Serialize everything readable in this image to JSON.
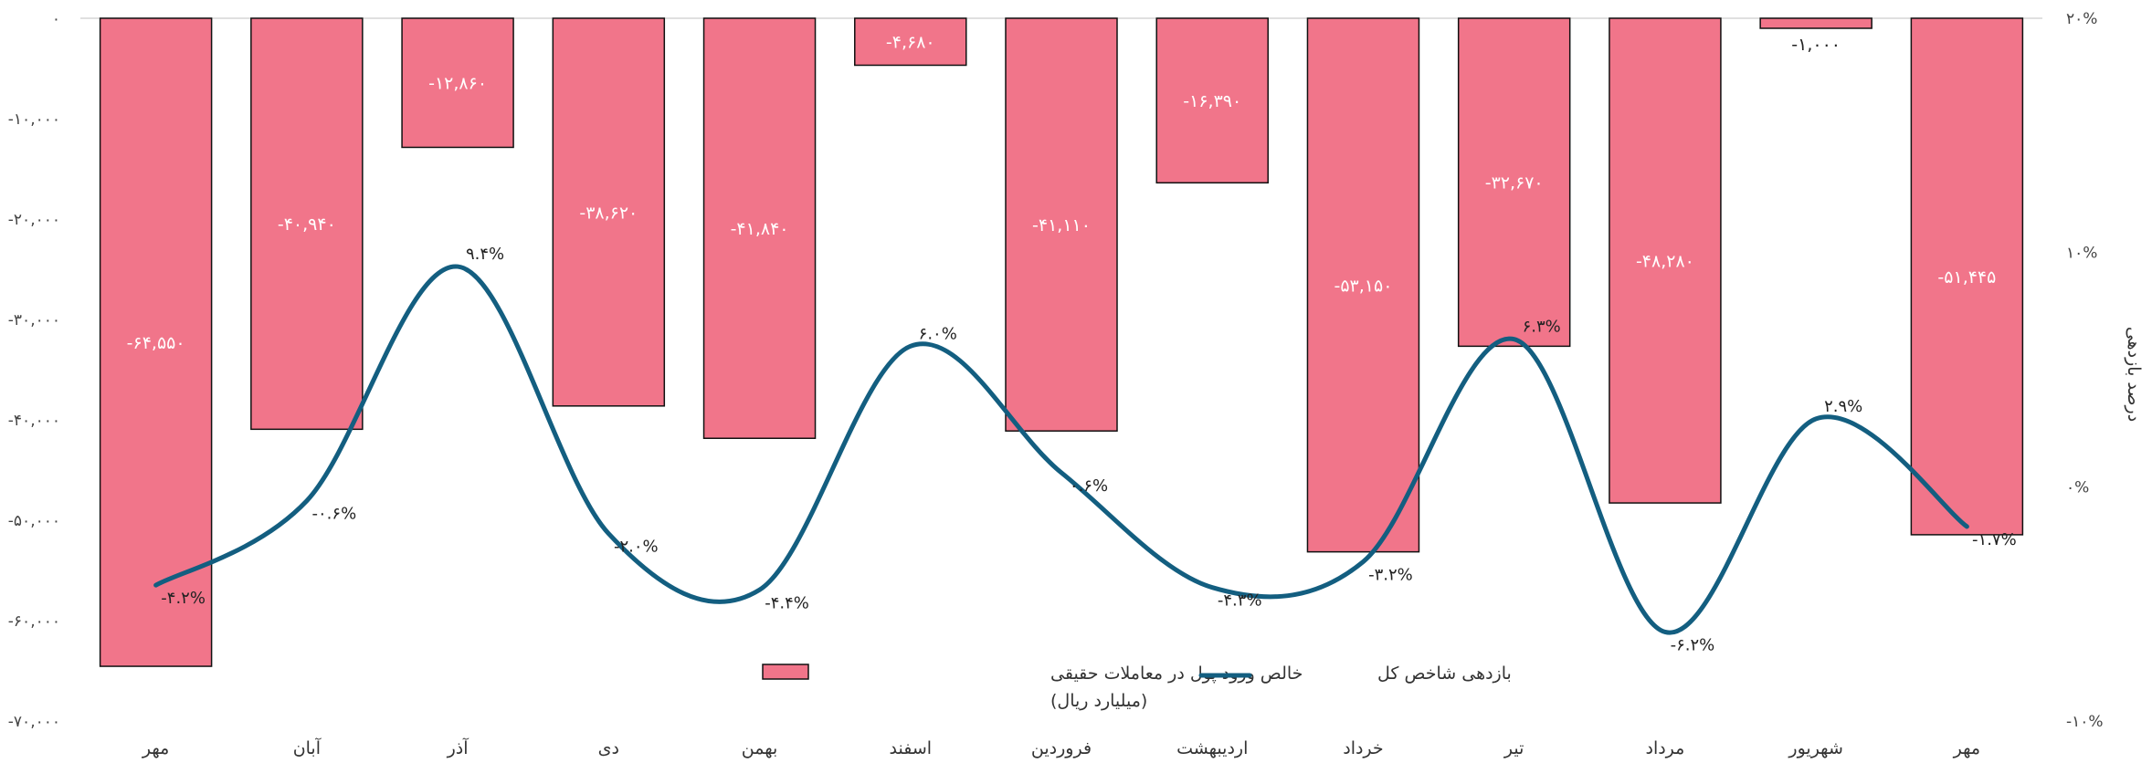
{
  "chart_data": {
    "type": "bar",
    "categories": [
      "مهر",
      "آبان",
      "آذر",
      "دی",
      "بهمن",
      "اسفند",
      "فروردین",
      "اردیبهشت",
      "خرداد",
      "تیر",
      "مرداد",
      "شهریور",
      "مهر"
    ],
    "series": [
      {
        "name": "خالص ورود پول در معاملات حقیقی",
        "name_unit": "(میلیارد ریال)",
        "type": "bar",
        "axis": "left",
        "color": "#f1758a",
        "values": [
          -64550,
          -40940,
          -12860,
          -38620,
          -41840,
          -4680,
          -41110,
          -16390,
          -53150,
          -32670,
          -48280,
          -1000,
          -51445
        ],
        "labels": [
          "-۶۴,۵۵۰",
          "-۴۰,۹۴۰",
          "-۱۲,۸۶۰",
          "-۳۸,۶۲۰",
          "-۴۱,۸۴۰",
          "-۴,۶۸۰",
          "-۴۱,۱۱۰",
          "-۱۶,۳۹۰",
          "-۵۳,۱۵۰",
          "-۳۲,۶۷۰",
          "-۴۸,۲۸۰",
          "-۱,۰۰۰",
          "-۵۱,۴۴۵"
        ]
      },
      {
        "name": "بازدهی شاخص کل",
        "type": "line",
        "axis": "right",
        "color": "#135e80",
        "values": [
          -4.2,
          -0.6,
          9.4,
          -2.0,
          -4.4,
          6.0,
          0.6,
          -4.3,
          -3.2,
          6.3,
          -6.2,
          2.9,
          -1.7
        ],
        "labels": [
          "-۴.۲%",
          "-۰.۶%",
          "۹.۴%",
          "-۲.۰%",
          "-۴.۴%",
          "۶.۰%",
          "۰.۶%",
          "-۴.۳%",
          "-۳.۲%",
          "۶.۳%",
          "-۶.۲%",
          "۲.۹%",
          "-۱.۷%"
        ]
      }
    ],
    "y_left": {
      "range": [
        -70000,
        0
      ],
      "ticks": [
        0,
        -10000,
        -20000,
        -30000,
        -40000,
        -50000,
        -60000,
        -70000
      ],
      "tick_labels": [
        "۰",
        "-۱۰,۰۰۰",
        "-۲۰,۰۰۰",
        "-۳۰,۰۰۰",
        "-۴۰,۰۰۰",
        "-۵۰,۰۰۰",
        "-۶۰,۰۰۰",
        "-۷۰,۰۰۰"
      ]
    },
    "y_right": {
      "label": "درصد بازدهی",
      "range": [
        -10,
        20
      ],
      "ticks": [
        20,
        10,
        0,
        -10
      ],
      "tick_labels": [
        "۲۰%",
        "۱۰%",
        "۰%",
        "-۱۰%"
      ]
    },
    "legend_position": "bottom-center",
    "grid": false
  }
}
